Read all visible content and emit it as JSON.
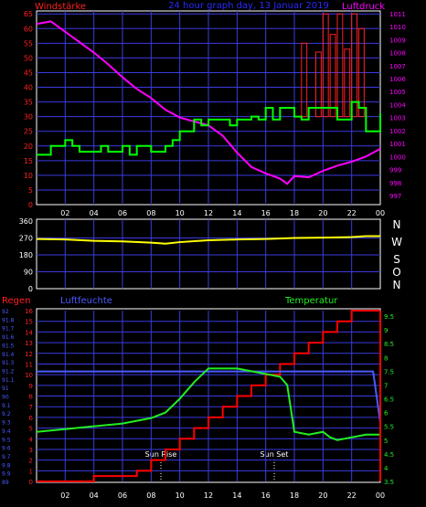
{
  "header": {
    "left_title": "Windstärke",
    "center_title": "24 hour graph day, 13 Januar 2019",
    "right_title": "Luftdruck"
  },
  "compass": [
    "N",
    "W",
    "S",
    "O",
    "N"
  ],
  "bottom_labels": {
    "left": "Regen",
    "mid": "Luftfeuchte",
    "right": "Temperatur",
    "sunrise": "Sun Rise",
    "sunset": "Sun Set"
  },
  "colors": {
    "grid": "#3b3be0",
    "frame": "#ffffff",
    "wind": "#00ff00",
    "pressure": "#ff00ff",
    "gust": "#ff2020",
    "direction": "#ffff00",
    "rain": "#ff0000",
    "humidity": "#4a5bff",
    "temperature": "#22ee22",
    "title_center": "#2a2aff"
  },
  "chart_data": [
    {
      "type": "line",
      "title": "24 hour graph day, 13 Januar 2019",
      "x_ticks": [
        "02",
        "04",
        "06",
        "08",
        "10",
        "12",
        "14",
        "16",
        "18",
        "20",
        "22",
        "00"
      ],
      "y_left_label": "Windstärke",
      "y_left_ticks": [
        0,
        5,
        10,
        15,
        20,
        25,
        30,
        35,
        40,
        45,
        50,
        55,
        60,
        65
      ],
      "y_right_label": "Luftdruck",
      "y_right_ticks": [
        997,
        998,
        999,
        1000,
        1001,
        1002,
        1003,
        1004,
        1005,
        1006,
        1007,
        1008,
        1009,
        1010,
        1011
      ],
      "series": [
        {
          "name": "Luftdruck",
          "axis": "right",
          "x": [
            0,
            1,
            2,
            3,
            4,
            5,
            6,
            7,
            8,
            9,
            10,
            11,
            12,
            13,
            14,
            15,
            16,
            17,
            17.5,
            18,
            19,
            20,
            21,
            22,
            23,
            24
          ],
          "values": [
            1010.2,
            1010.4,
            1009.6,
            1008.8,
            1008,
            1007.1,
            1006.1,
            1005.2,
            1004.5,
            1003.6,
            1003,
            1002.7,
            1002.4,
            1001.6,
            1000.3,
            999.2,
            998.7,
            998.3,
            997.9,
            998.5,
            998.4,
            998.9,
            999.3,
            999.6,
            1000,
            1000.6
          ]
        },
        {
          "name": "Windstärke",
          "axis": "left",
          "x": [
            0,
            1,
            1.5,
            2,
            2.5,
            3,
            4,
            4.5,
            5,
            6,
            6.5,
            7,
            8,
            9,
            9.5,
            10,
            10.5,
            11,
            11.5,
            12,
            13,
            13.5,
            14,
            15,
            15.5,
            16,
            16.5,
            17,
            18,
            18.5,
            19,
            20,
            21,
            22,
            22.5,
            23,
            24
          ],
          "values": [
            17,
            20,
            20,
            22,
            20,
            18,
            18,
            20,
            18,
            20,
            17,
            20,
            18,
            20,
            22,
            25,
            25,
            29,
            27,
            29,
            29,
            27,
            29,
            30,
            29,
            33,
            29,
            33,
            30,
            29,
            33,
            33,
            29,
            35,
            33,
            25,
            31
          ]
        },
        {
          "name": "Böen",
          "x": [
            18.5,
            19,
            19.5,
            20,
            20.5,
            21,
            21.5,
            22,
            22.5,
            23
          ],
          "values": [
            55,
            30,
            52,
            65,
            58,
            65,
            53,
            65,
            60,
            57
          ]
        },
        {
          "name": "Windrichtung",
          "axis": "direction",
          "x": [
            0,
            2,
            4,
            6,
            8,
            9,
            10,
            12,
            14,
            16,
            18,
            20,
            22,
            23,
            24
          ],
          "values": [
            265,
            262,
            255,
            252,
            245,
            240,
            248,
            258,
            262,
            265,
            270,
            272,
            275,
            280,
            280
          ]
        }
      ]
    },
    {
      "type": "line",
      "x_ticks": [
        "02",
        "04",
        "06",
        "08",
        "10",
        "12",
        "14",
        "16",
        "18",
        "20",
        "22",
        "00"
      ],
      "y_left_label": "Regen",
      "y_left_ticks": [
        0,
        1,
        2,
        3,
        4,
        5,
        6,
        7,
        8,
        9,
        10,
        11,
        12,
        13,
        14,
        15,
        16
      ],
      "y_humidity_label": "Luftfeuchte",
      "y_humidity_ticks": [
        "89",
        "9.9",
        "9.8",
        "9.7",
        "9.6",
        "9.5",
        "9.4",
        "9.3",
        "9.2",
        "9.1",
        "90",
        "91",
        "91.1",
        "91.2",
        "91.3",
        "91.4",
        "91.5",
        "91.6",
        "91.7",
        "91.8",
        "92"
      ],
      "y_right_label": "Temperatur",
      "y_right_ticks": [
        3.5,
        4,
        4.5,
        5,
        5.5,
        6,
        6.5,
        7,
        7.5,
        8,
        8.5,
        9,
        9.5
      ],
      "series": [
        {
          "name": "Regen",
          "axis": "left",
          "x": [
            0,
            1,
            2,
            3,
            4,
            5,
            6,
            7,
            8,
            9,
            10,
            11,
            12,
            13,
            14,
            15,
            16,
            17,
            18,
            19,
            20,
            21,
            22,
            23,
            24
          ],
          "values": [
            0,
            0,
            0,
            0,
            0.5,
            0.5,
            0.5,
            1,
            2,
            3,
            4,
            5,
            6,
            7,
            8,
            9,
            10,
            11,
            12,
            13,
            14,
            15,
            16,
            16,
            16
          ]
        },
        {
          "name": "Luftfeuchte",
          "axis": "left",
          "x": [
            0,
            23.5,
            24
          ],
          "values": [
            10.3,
            10.3,
            5.5
          ]
        },
        {
          "name": "Temperatur",
          "axis": "right",
          "x": [
            0,
            2,
            4,
            6,
            8,
            9,
            10,
            11,
            12,
            13,
            14,
            15,
            16,
            17,
            17.5,
            18,
            19,
            20,
            20.5,
            21,
            22,
            23,
            24
          ],
          "values": [
            5.3,
            5.4,
            5.5,
            5.6,
            5.8,
            6,
            6.5,
            7.1,
            7.6,
            7.6,
            7.6,
            7.5,
            7.4,
            7.3,
            7,
            5.3,
            5.2,
            5.3,
            5.1,
            5,
            5.1,
            5.2,
            5.2
          ]
        }
      ]
    }
  ]
}
